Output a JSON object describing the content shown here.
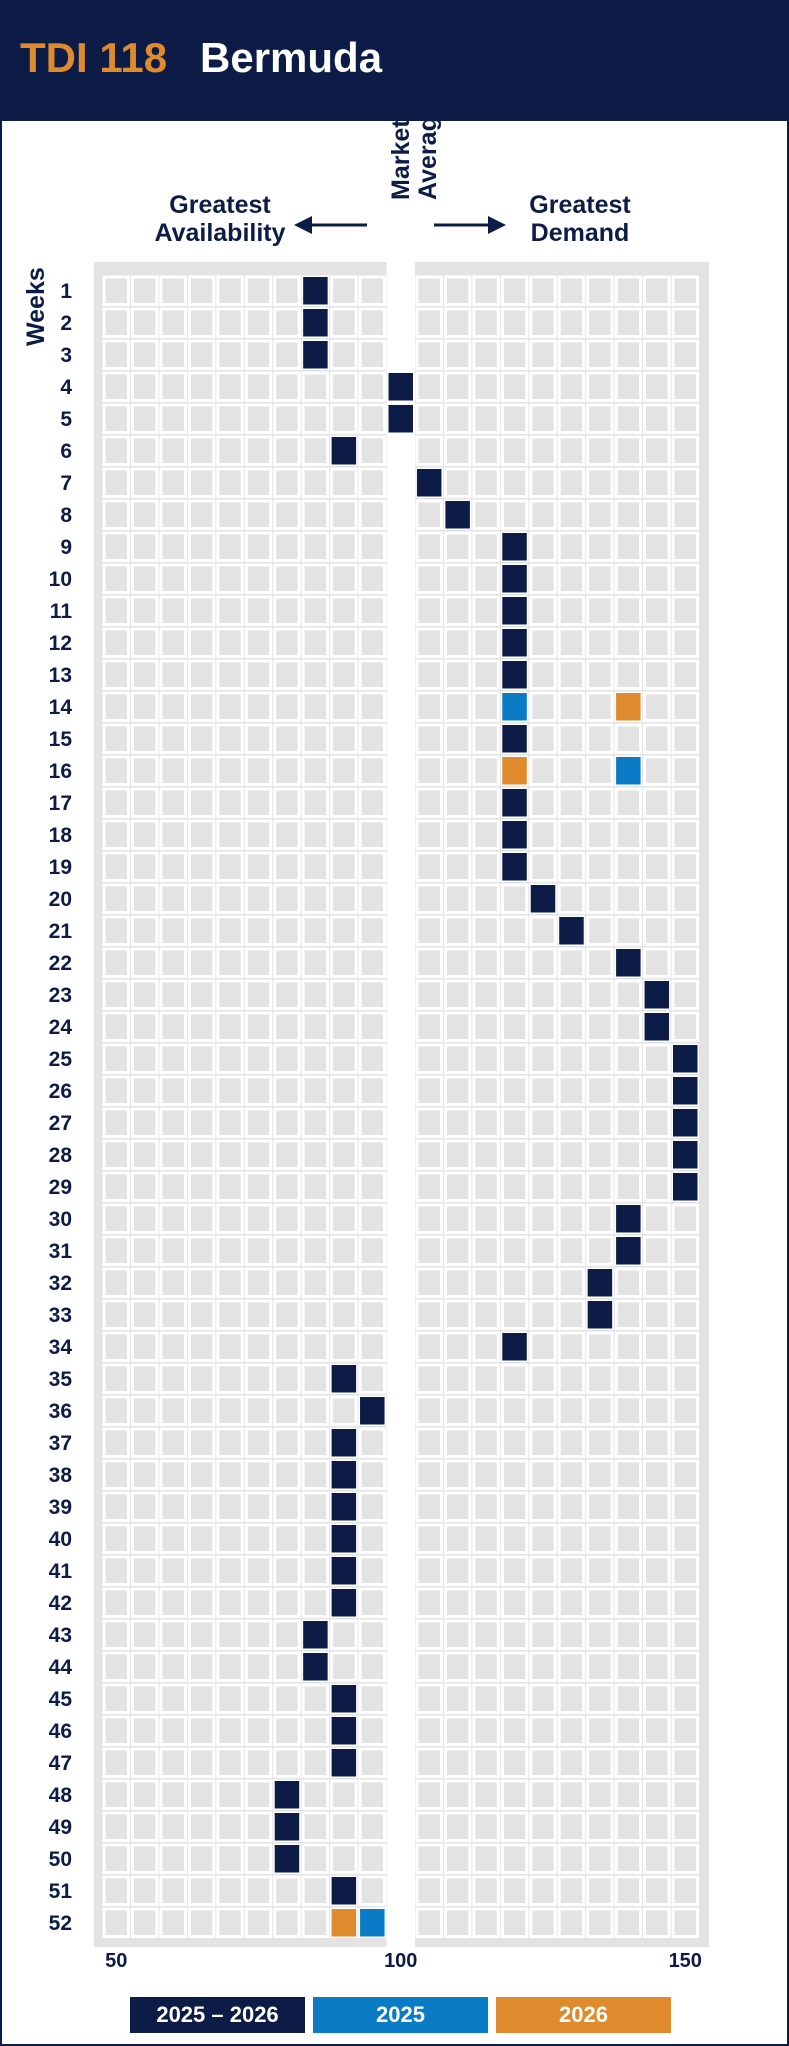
{
  "header": {
    "code": "TDI 118",
    "name": "Bermuda"
  },
  "labels": {
    "left_heading_line1": "Greatest",
    "left_heading_line2": "Availability",
    "market_line1": "Market",
    "market_line2": "Average",
    "right_heading_line1": "Greatest",
    "right_heading_line2": "Demand",
    "weeks": "Weeks"
  },
  "colors": {
    "navy": "#0d1c47",
    "blue": "#0a7cc6",
    "orange": "#e08a2e",
    "cell": "#e3e3e3"
  },
  "chart_data": {
    "type": "heatmap",
    "title": "",
    "xlabel": "",
    "ylabel": "Weeks",
    "xlim": [
      50,
      150
    ],
    "x_ticks": [
      50,
      100,
      150
    ],
    "x_tick_labels": [
      "50",
      "100",
      "150"
    ],
    "column_step": 5,
    "weeks": [
      1,
      2,
      3,
      4,
      5,
      6,
      7,
      8,
      9,
      10,
      11,
      12,
      13,
      14,
      15,
      16,
      17,
      18,
      19,
      20,
      21,
      22,
      23,
      24,
      25,
      26,
      27,
      28,
      29,
      30,
      31,
      32,
      33,
      34,
      35,
      36,
      37,
      38,
      39,
      40,
      41,
      42,
      43,
      44,
      45,
      46,
      47,
      48,
      49,
      50,
      51,
      52
    ],
    "legend": [
      "2025 – 2026",
      "2025",
      "2026"
    ],
    "series": [
      {
        "name": "2025 – 2026",
        "color": "#0d1c47",
        "values": [
          85,
          85,
          85,
          100,
          100,
          90,
          105,
          110,
          120,
          120,
          120,
          120,
          120,
          null,
          120,
          null,
          120,
          120,
          120,
          125,
          130,
          140,
          145,
          145,
          150,
          150,
          150,
          150,
          150,
          140,
          140,
          135,
          135,
          120,
          90,
          95,
          90,
          90,
          90,
          90,
          90,
          90,
          85,
          85,
          90,
          90,
          90,
          80,
          80,
          80,
          90,
          null
        ]
      },
      {
        "name": "2025",
        "color": "#0a7cc6",
        "points": [
          {
            "week": 14,
            "value": 120
          },
          {
            "week": 16,
            "value": 140
          },
          {
            "week": 52,
            "value": 95
          }
        ]
      },
      {
        "name": "2026",
        "color": "#e08a2e",
        "points": [
          {
            "week": 14,
            "value": 140
          },
          {
            "week": 16,
            "value": 120
          },
          {
            "week": 52,
            "value": 90
          }
        ]
      }
    ]
  }
}
